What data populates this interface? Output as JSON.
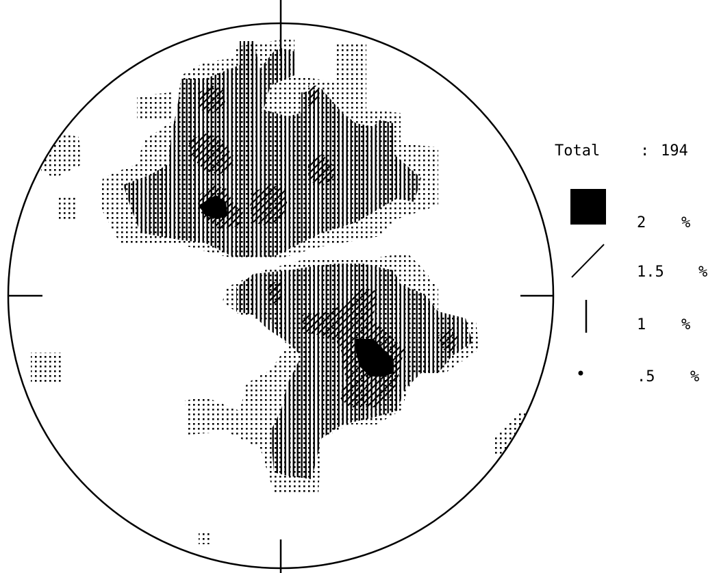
{
  "total": {
    "label": "Total",
    "separator": ":",
    "value": "194"
  },
  "legend": [
    {
      "symbol": "solid-square",
      "value": "2",
      "unit": "%"
    },
    {
      "symbol": "diagonal-stroke",
      "value": "1.5",
      "unit": "%"
    },
    {
      "symbol": "vertical-stroke",
      "value": "1",
      "unit": "%"
    },
    {
      "symbol": "dot",
      "value": ".5",
      "unit": "%"
    }
  ],
  "colors": {
    "ink": "#000000",
    "paper": "#ffffff"
  }
}
